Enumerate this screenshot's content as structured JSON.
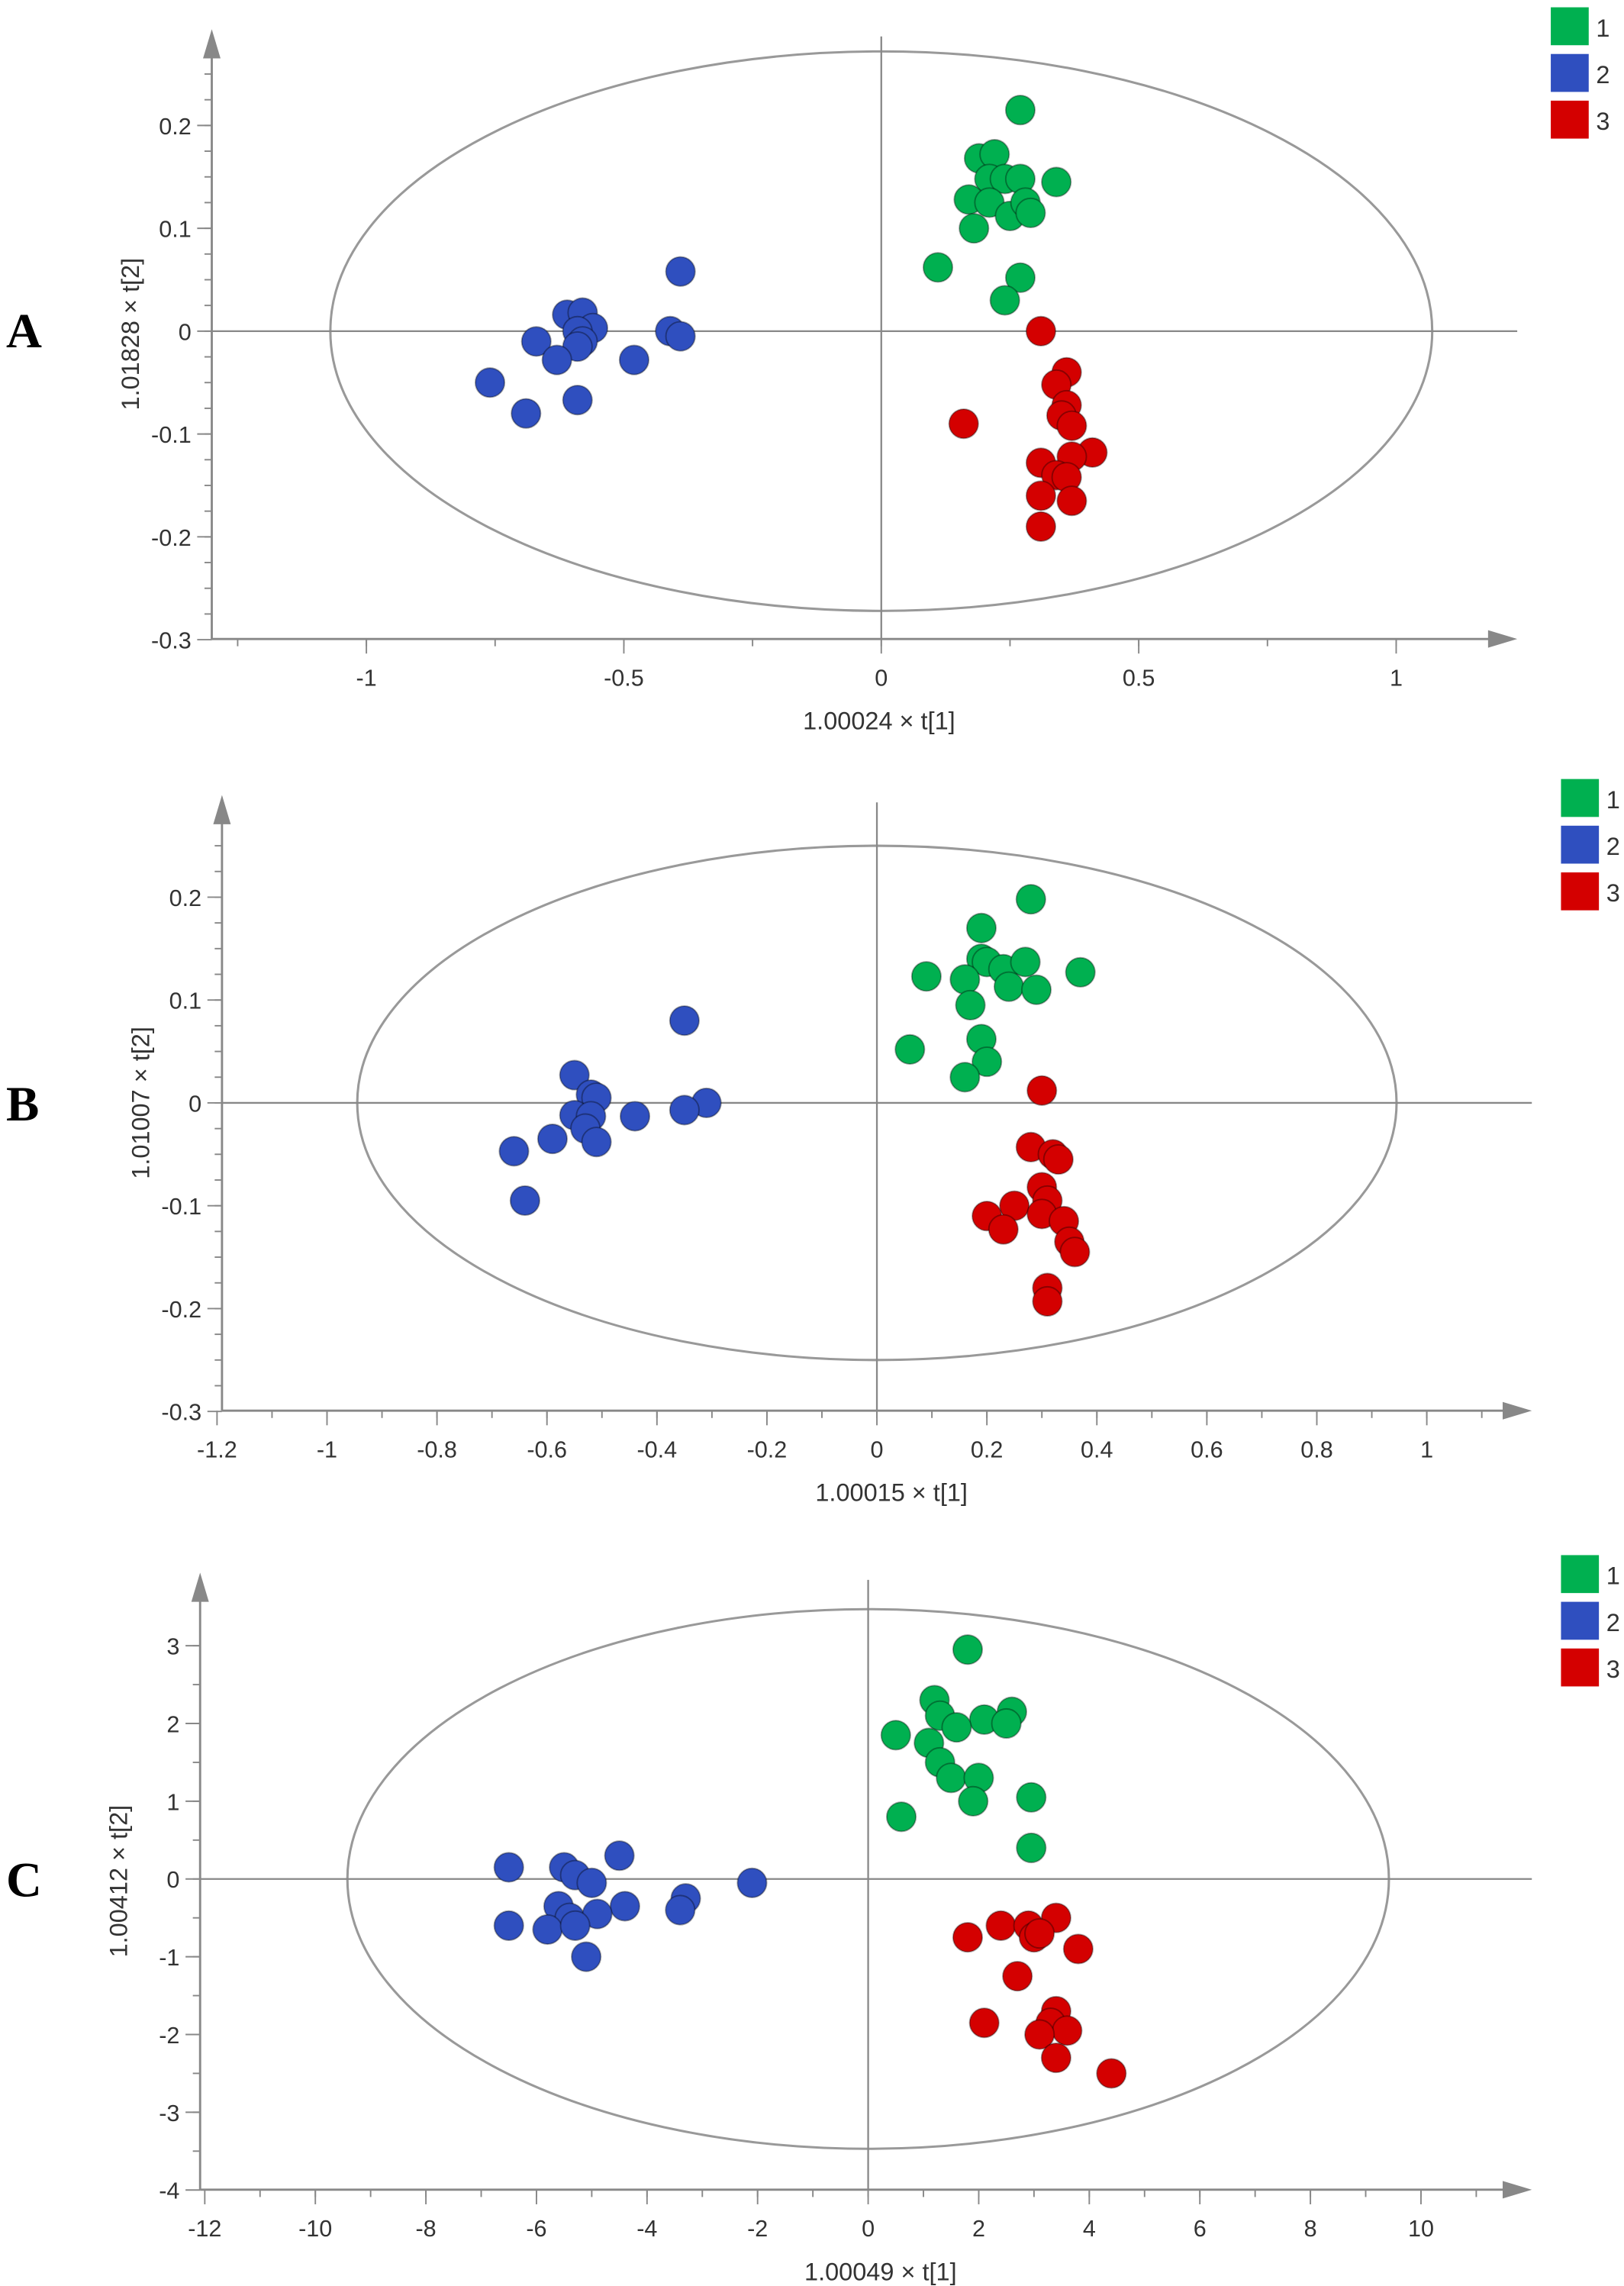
{
  "colors": {
    "1": "#00b050",
    "2": "#2f4fbf",
    "3": "#d40000"
  },
  "chart_data": [
    {
      "type": "scatter",
      "panel_label": "A",
      "xlabel": "1.00024 × t[1]",
      "ylabel": "1.01828 × t[2]",
      "xticks": [
        "-1",
        "-0.5",
        "0",
        "0.5",
        "1"
      ],
      "xtick_values": [
        -1,
        -0.5,
        0,
        0.5,
        1
      ],
      "yticks": [
        "-0.3",
        "-0.2",
        "-0.1",
        "0",
        "0.1",
        "0.2"
      ],
      "ytick_values": [
        -0.3,
        -0.2,
        -0.1,
        0,
        0.1,
        0.2
      ],
      "xlim": [
        -1.3,
        1.25
      ],
      "ylim": [
        -0.3,
        0.3
      ],
      "ellipse": {
        "rx": 1.07,
        "ry": 0.272
      },
      "legend": [
        "1",
        "2",
        "3"
      ],
      "legend_position": "top-right",
      "series": [
        {
          "name": "1",
          "points": [
            [
              0.27,
              0.215
            ],
            [
              0.19,
              0.168
            ],
            [
              0.22,
              0.172
            ],
            [
              0.21,
              0.148
            ],
            [
              0.24,
              0.148
            ],
            [
              0.27,
              0.148
            ],
            [
              0.34,
              0.145
            ],
            [
              0.17,
              0.128
            ],
            [
              0.21,
              0.125
            ],
            [
              0.25,
              0.112
            ],
            [
              0.28,
              0.125
            ],
            [
              0.29,
              0.115
            ],
            [
              0.18,
              0.1
            ],
            [
              0.11,
              0.062
            ],
            [
              0.27,
              0.052
            ],
            [
              0.24,
              0.03
            ]
          ]
        },
        {
          "name": "2",
          "points": [
            [
              -0.39,
              0.058
            ],
            [
              -0.61,
              0.016
            ],
            [
              -0.58,
              0.018
            ],
            [
              -0.56,
              0.003
            ],
            [
              -0.59,
              0.0
            ],
            [
              -0.58,
              -0.01
            ],
            [
              -0.59,
              -0.015
            ],
            [
              -0.67,
              -0.01
            ],
            [
              -0.63,
              -0.028
            ],
            [
              -0.48,
              -0.028
            ],
            [
              -0.41,
              0.0
            ],
            [
              -0.39,
              -0.005
            ],
            [
              -0.76,
              -0.05
            ],
            [
              -0.69,
              -0.08
            ],
            [
              -0.59,
              -0.067
            ]
          ]
        },
        {
          "name": "3",
          "points": [
            [
              0.31,
              0.0
            ],
            [
              0.36,
              -0.04
            ],
            [
              0.34,
              -0.052
            ],
            [
              0.36,
              -0.072
            ],
            [
              0.35,
              -0.082
            ],
            [
              0.37,
              -0.092
            ],
            [
              0.16,
              -0.09
            ],
            [
              0.41,
              -0.118
            ],
            [
              0.37,
              -0.122
            ],
            [
              0.31,
              -0.128
            ],
            [
              0.34,
              -0.14
            ],
            [
              0.36,
              -0.142
            ],
            [
              0.31,
              -0.16
            ],
            [
              0.37,
              -0.165
            ],
            [
              0.31,
              -0.19
            ]
          ]
        }
      ]
    },
    {
      "type": "scatter",
      "panel_label": "B",
      "xlabel": "1.00015 × t[1]",
      "ylabel": "1.01007 × t[2]",
      "xticks": [
        "-1.2",
        "-1",
        "-0.8",
        "-0.6",
        "-0.4",
        "-0.2",
        "0",
        "0.2",
        "0.4",
        "0.6",
        "0.8",
        "1"
      ],
      "xtick_values": [
        -1.2,
        -1,
        -0.8,
        -0.6,
        -0.4,
        -0.2,
        0,
        0.2,
        0.4,
        0.6,
        0.8,
        1
      ],
      "yticks": [
        "-0.3",
        "-0.2",
        "-0.1",
        "0",
        "0.1",
        "0.2"
      ],
      "ytick_values": [
        -0.3,
        -0.2,
        -0.1,
        0,
        0.1,
        0.2
      ],
      "xlim": [
        -1.2,
        1.2
      ],
      "ylim": [
        -0.3,
        0.3
      ],
      "ellipse": {
        "rx": 0.945,
        "ry": 0.25
      },
      "legend": [
        "1",
        "2",
        "3"
      ],
      "legend_position": "top-right",
      "series": [
        {
          "name": "1",
          "points": [
            [
              0.28,
              0.198
            ],
            [
              0.19,
              0.17
            ],
            [
              0.09,
              0.123
            ],
            [
              0.19,
              0.14
            ],
            [
              0.2,
              0.137
            ],
            [
              0.16,
              0.12
            ],
            [
              0.23,
              0.13
            ],
            [
              0.27,
              0.137
            ],
            [
              0.24,
              0.113
            ],
            [
              0.29,
              0.11
            ],
            [
              0.37,
              0.127
            ],
            [
              0.17,
              0.095
            ],
            [
              0.19,
              0.062
            ],
            [
              0.2,
              0.04
            ],
            [
              0.06,
              0.052
            ],
            [
              0.16,
              0.025
            ]
          ]
        },
        {
          "name": "2",
          "points": [
            [
              -0.35,
              0.08
            ],
            [
              -0.55,
              0.027
            ],
            [
              -0.52,
              0.008
            ],
            [
              -0.51,
              0.005
            ],
            [
              -0.31,
              0.0
            ],
            [
              -0.35,
              -0.007
            ],
            [
              -0.44,
              -0.013
            ],
            [
              -0.55,
              -0.012
            ],
            [
              -0.52,
              -0.013
            ],
            [
              -0.53,
              -0.025
            ],
            [
              -0.59,
              -0.035
            ],
            [
              -0.51,
              -0.038
            ],
            [
              -0.66,
              -0.047
            ],
            [
              -0.64,
              -0.095
            ]
          ]
        },
        {
          "name": "3",
          "points": [
            [
              0.3,
              0.012
            ],
            [
              0.28,
              -0.043
            ],
            [
              0.32,
              -0.05
            ],
            [
              0.33,
              -0.055
            ],
            [
              0.3,
              -0.082
            ],
            [
              0.31,
              -0.095
            ],
            [
              0.25,
              -0.1
            ],
            [
              0.2,
              -0.11
            ],
            [
              0.23,
              -0.123
            ],
            [
              0.3,
              -0.108
            ],
            [
              0.34,
              -0.115
            ],
            [
              0.35,
              -0.135
            ],
            [
              0.36,
              -0.145
            ],
            [
              0.31,
              -0.18
            ],
            [
              0.31,
              -0.193
            ]
          ]
        }
      ]
    },
    {
      "type": "scatter",
      "panel_label": "C",
      "xlabel": "1.00049 × t[1]",
      "ylabel": "1.00412 × t[2]",
      "xticks": [
        "-12",
        "-10",
        "-8",
        "-6",
        "-4",
        "-2",
        "0",
        "2",
        "4",
        "6",
        "8",
        "10"
      ],
      "xtick_values": [
        -12,
        -10,
        -8,
        -6,
        -4,
        -2,
        0,
        2,
        4,
        6,
        8,
        10
      ],
      "yticks": [
        "-4",
        "-3",
        "-2",
        "-1",
        "0",
        "1",
        "2",
        "3"
      ],
      "ytick_values": [
        -4,
        -3,
        -2,
        -1,
        0,
        1,
        2,
        3
      ],
      "xlim": [
        -12,
        12
      ],
      "ylim": [
        -4,
        4
      ],
      "ellipse": {
        "rx": 9.42,
        "ry": 3.47
      },
      "legend": [
        "1",
        "2",
        "3"
      ],
      "legend_position": "top-right",
      "series": [
        {
          "name": "1",
          "points": [
            [
              1.8,
              2.95
            ],
            [
              1.2,
              2.3
            ],
            [
              1.3,
              2.1
            ],
            [
              2.6,
              2.15
            ],
            [
              0.5,
              1.85
            ],
            [
              2.1,
              2.05
            ],
            [
              1.6,
              1.95
            ],
            [
              2.5,
              2.0
            ],
            [
              1.1,
              1.75
            ],
            [
              1.3,
              1.5
            ],
            [
              1.5,
              1.3
            ],
            [
              2.0,
              1.3
            ],
            [
              1.9,
              1.0
            ],
            [
              2.95,
              1.05
            ],
            [
              0.6,
              0.8
            ],
            [
              2.95,
              0.4
            ]
          ]
        },
        {
          "name": "2",
          "points": [
            [
              -6.5,
              0.15
            ],
            [
              -5.5,
              0.15
            ],
            [
              -5.3,
              0.05
            ],
            [
              -4.5,
              0.3
            ],
            [
              -2.1,
              -0.05
            ],
            [
              -3.3,
              -0.25
            ],
            [
              -3.4,
              -0.4
            ],
            [
              -4.4,
              -0.35
            ],
            [
              -5.0,
              -0.05
            ],
            [
              -5.6,
              -0.35
            ],
            [
              -5.4,
              -0.5
            ],
            [
              -4.9,
              -0.45
            ],
            [
              -6.5,
              -0.6
            ],
            [
              -5.8,
              -0.65
            ],
            [
              -5.1,
              -1.0
            ],
            [
              -5.3,
              -0.6
            ]
          ]
        },
        {
          "name": "3",
          "points": [
            [
              3.4,
              -0.5
            ],
            [
              2.4,
              -0.6
            ],
            [
              2.9,
              -0.6
            ],
            [
              3.0,
              -0.75
            ],
            [
              3.1,
              -0.7
            ],
            [
              1.8,
              -0.75
            ],
            [
              3.8,
              -0.9
            ],
            [
              2.7,
              -1.25
            ],
            [
              3.4,
              -1.7
            ],
            [
              3.3,
              -1.85
            ],
            [
              3.6,
              -1.95
            ],
            [
              3.1,
              -2.0
            ],
            [
              2.1,
              -1.85
            ],
            [
              3.4,
              -2.3
            ],
            [
              4.4,
              -2.5
            ]
          ]
        }
      ]
    }
  ]
}
